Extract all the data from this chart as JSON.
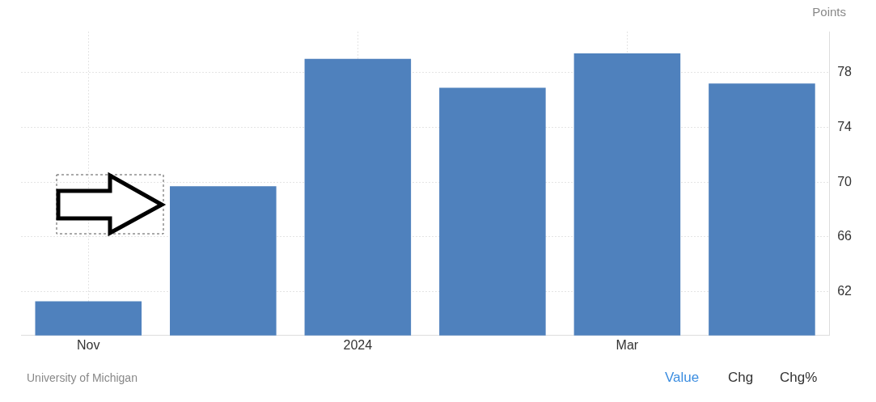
{
  "chart_data": {
    "type": "bar",
    "ylabel": "Points",
    "categories": [
      "Nov",
      null,
      "2024",
      null,
      "Mar",
      null
    ],
    "values": [
      61.3,
      69.7,
      79.0,
      76.9,
      79.4,
      77.2
    ],
    "color": "#4f81bd",
    "ylim": [
      58.8,
      81
    ],
    "yticks": [
      62,
      66,
      70,
      74,
      78
    ],
    "grid": true,
    "annotations": [
      "University of Michigan",
      "Value",
      "Chg",
      "Chg%"
    ]
  }
}
